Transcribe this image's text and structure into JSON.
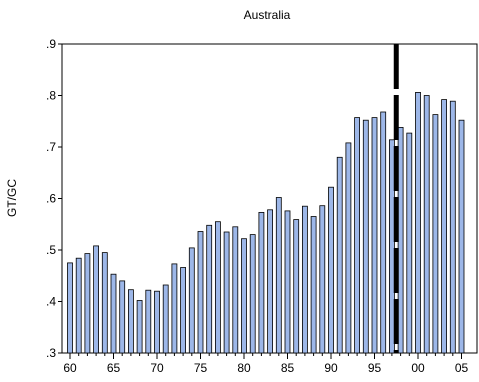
{
  "chart_data": {
    "type": "bar",
    "title": "Australia",
    "xlabel": "",
    "ylabel": "GT/GC",
    "ylim": [
      0.3,
      0.9
    ],
    "y_ticks": [
      ".3",
      ".4",
      ".5",
      ".6",
      ".7",
      ".8",
      ".9"
    ],
    "y_tick_values": [
      0.3,
      0.4,
      0.5,
      0.6,
      0.7,
      0.8,
      0.9
    ],
    "x_ticks": [
      "60",
      "65",
      "70",
      "75",
      "80",
      "85",
      "90",
      "95",
      "00",
      "05"
    ],
    "x_tick_years": [
      1960,
      1965,
      1970,
      1975,
      1980,
      1985,
      1990,
      1995,
      2000,
      2005
    ],
    "x": [
      1960,
      1961,
      1962,
      1963,
      1964,
      1965,
      1966,
      1967,
      1968,
      1969,
      1970,
      1971,
      1972,
      1973,
      1974,
      1975,
      1976,
      1977,
      1978,
      1979,
      1980,
      1981,
      1982,
      1983,
      1984,
      1985,
      1986,
      1987,
      1988,
      1989,
      1990,
      1991,
      1992,
      1993,
      1994,
      1995,
      1996,
      1997,
      1998,
      1999,
      2000,
      2001,
      2002,
      2003,
      2004,
      2005
    ],
    "values": [
      0.475,
      0.484,
      0.493,
      0.508,
      0.495,
      0.453,
      0.44,
      0.423,
      0.402,
      0.422,
      0.42,
      0.432,
      0.473,
      0.466,
      0.504,
      0.536,
      0.548,
      0.555,
      0.535,
      0.545,
      0.522,
      0.53,
      0.573,
      0.578,
      0.602,
      0.576,
      0.559,
      0.585,
      0.565,
      0.586,
      0.622,
      0.68,
      0.708,
      0.757,
      0.752,
      0.757,
      0.768,
      0.714,
      0.738,
      0.727,
      0.806,
      0.8,
      0.763,
      0.792,
      0.789,
      0.752
    ],
    "bar_color": "#9db7e8",
    "bar_edge_color": "#000000",
    "break_line_year": 1997.5,
    "grid": false,
    "legend": "none"
  }
}
